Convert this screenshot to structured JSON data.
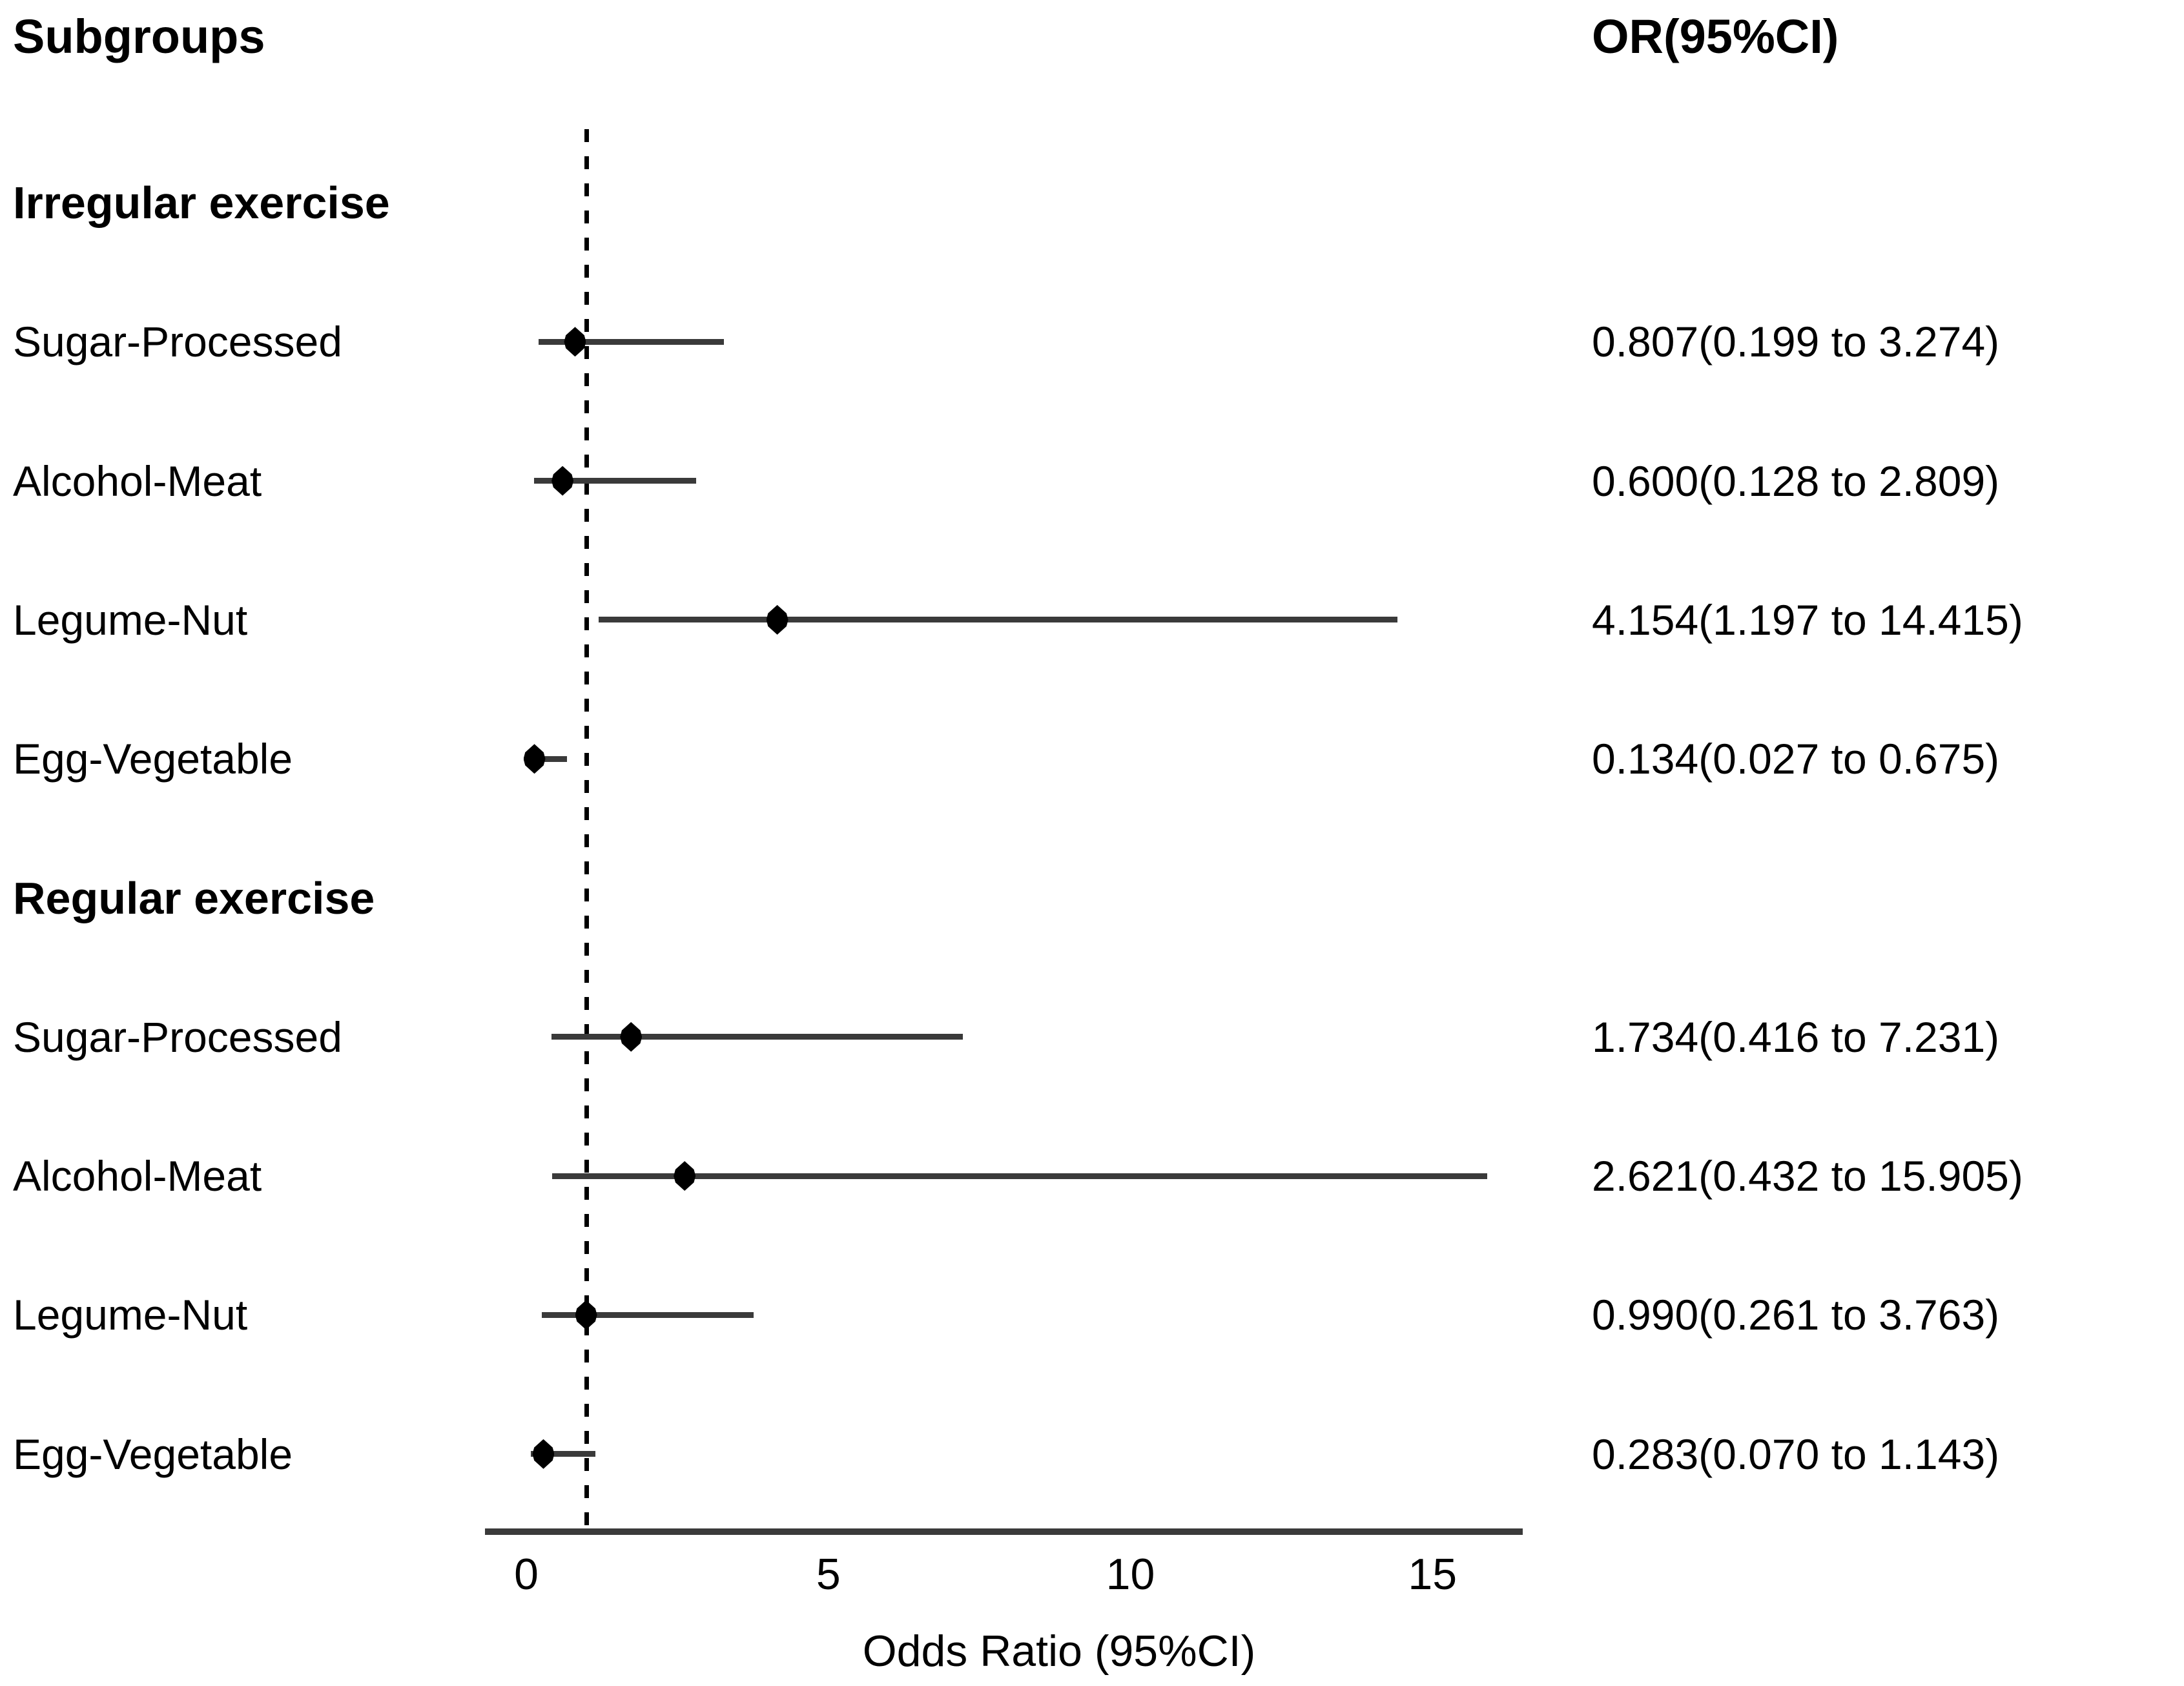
{
  "figure": {
    "background": "#ffffff",
    "text_color": "#000000",
    "ci_line_color": "#3a3a3a",
    "axis_line_color": "#3a3a3a",
    "marker_color": "#000000",
    "reference_line_color": "#000000"
  },
  "chart_data": {
    "type": "scatter",
    "subtype": "forest-plot",
    "title": "",
    "col_header_left": "Subgroups",
    "col_header_right": "OR(95%CI)",
    "xlabel": "Odds Ratio (95%CI)",
    "x_ticks": [
      0,
      5,
      10,
      15
    ],
    "x_axis_range": [
      -0.69,
      16.45
    ],
    "reference_line_x": 1,
    "grid": false,
    "rows": [
      {
        "label": "Irregular exercise",
        "type": "group"
      },
      {
        "label": "Sugar-Processed",
        "type": "item",
        "or": 0.807,
        "lo": 0.199,
        "hi": 3.274,
        "display": "0.807(0.199 to 3.274)"
      },
      {
        "label": "Alcohol-Meat",
        "type": "item",
        "or": 0.6,
        "lo": 0.128,
        "hi": 2.809,
        "display": "0.600(0.128 to 2.809)"
      },
      {
        "label": "Legume-Nut",
        "type": "item",
        "or": 4.154,
        "lo": 1.197,
        "hi": 14.415,
        "display": "4.154(1.197 to 14.415)"
      },
      {
        "label": "Egg-Vegetable",
        "type": "item",
        "or": 0.134,
        "lo": 0.027,
        "hi": 0.675,
        "display": "0.134(0.027 to 0.675)"
      },
      {
        "label": "Regular exercise",
        "type": "group"
      },
      {
        "label": "Sugar-Processed",
        "type": "item",
        "or": 1.734,
        "lo": 0.416,
        "hi": 7.231,
        "display": "1.734(0.416 to 7.231)"
      },
      {
        "label": "Alcohol-Meat",
        "type": "item",
        "or": 2.621,
        "lo": 0.432,
        "hi": 15.905,
        "display": "2.621(0.432 to 15.905)"
      },
      {
        "label": "Legume-Nut",
        "type": "item",
        "or": 0.99,
        "lo": 0.261,
        "hi": 3.763,
        "display": "0.990(0.261 to 3.763)"
      },
      {
        "label": "Egg-Vegetable",
        "type": "item",
        "or": 0.283,
        "lo": 0.07,
        "hi": 1.143,
        "display": "0.283(0.070 to 1.143)"
      }
    ]
  }
}
